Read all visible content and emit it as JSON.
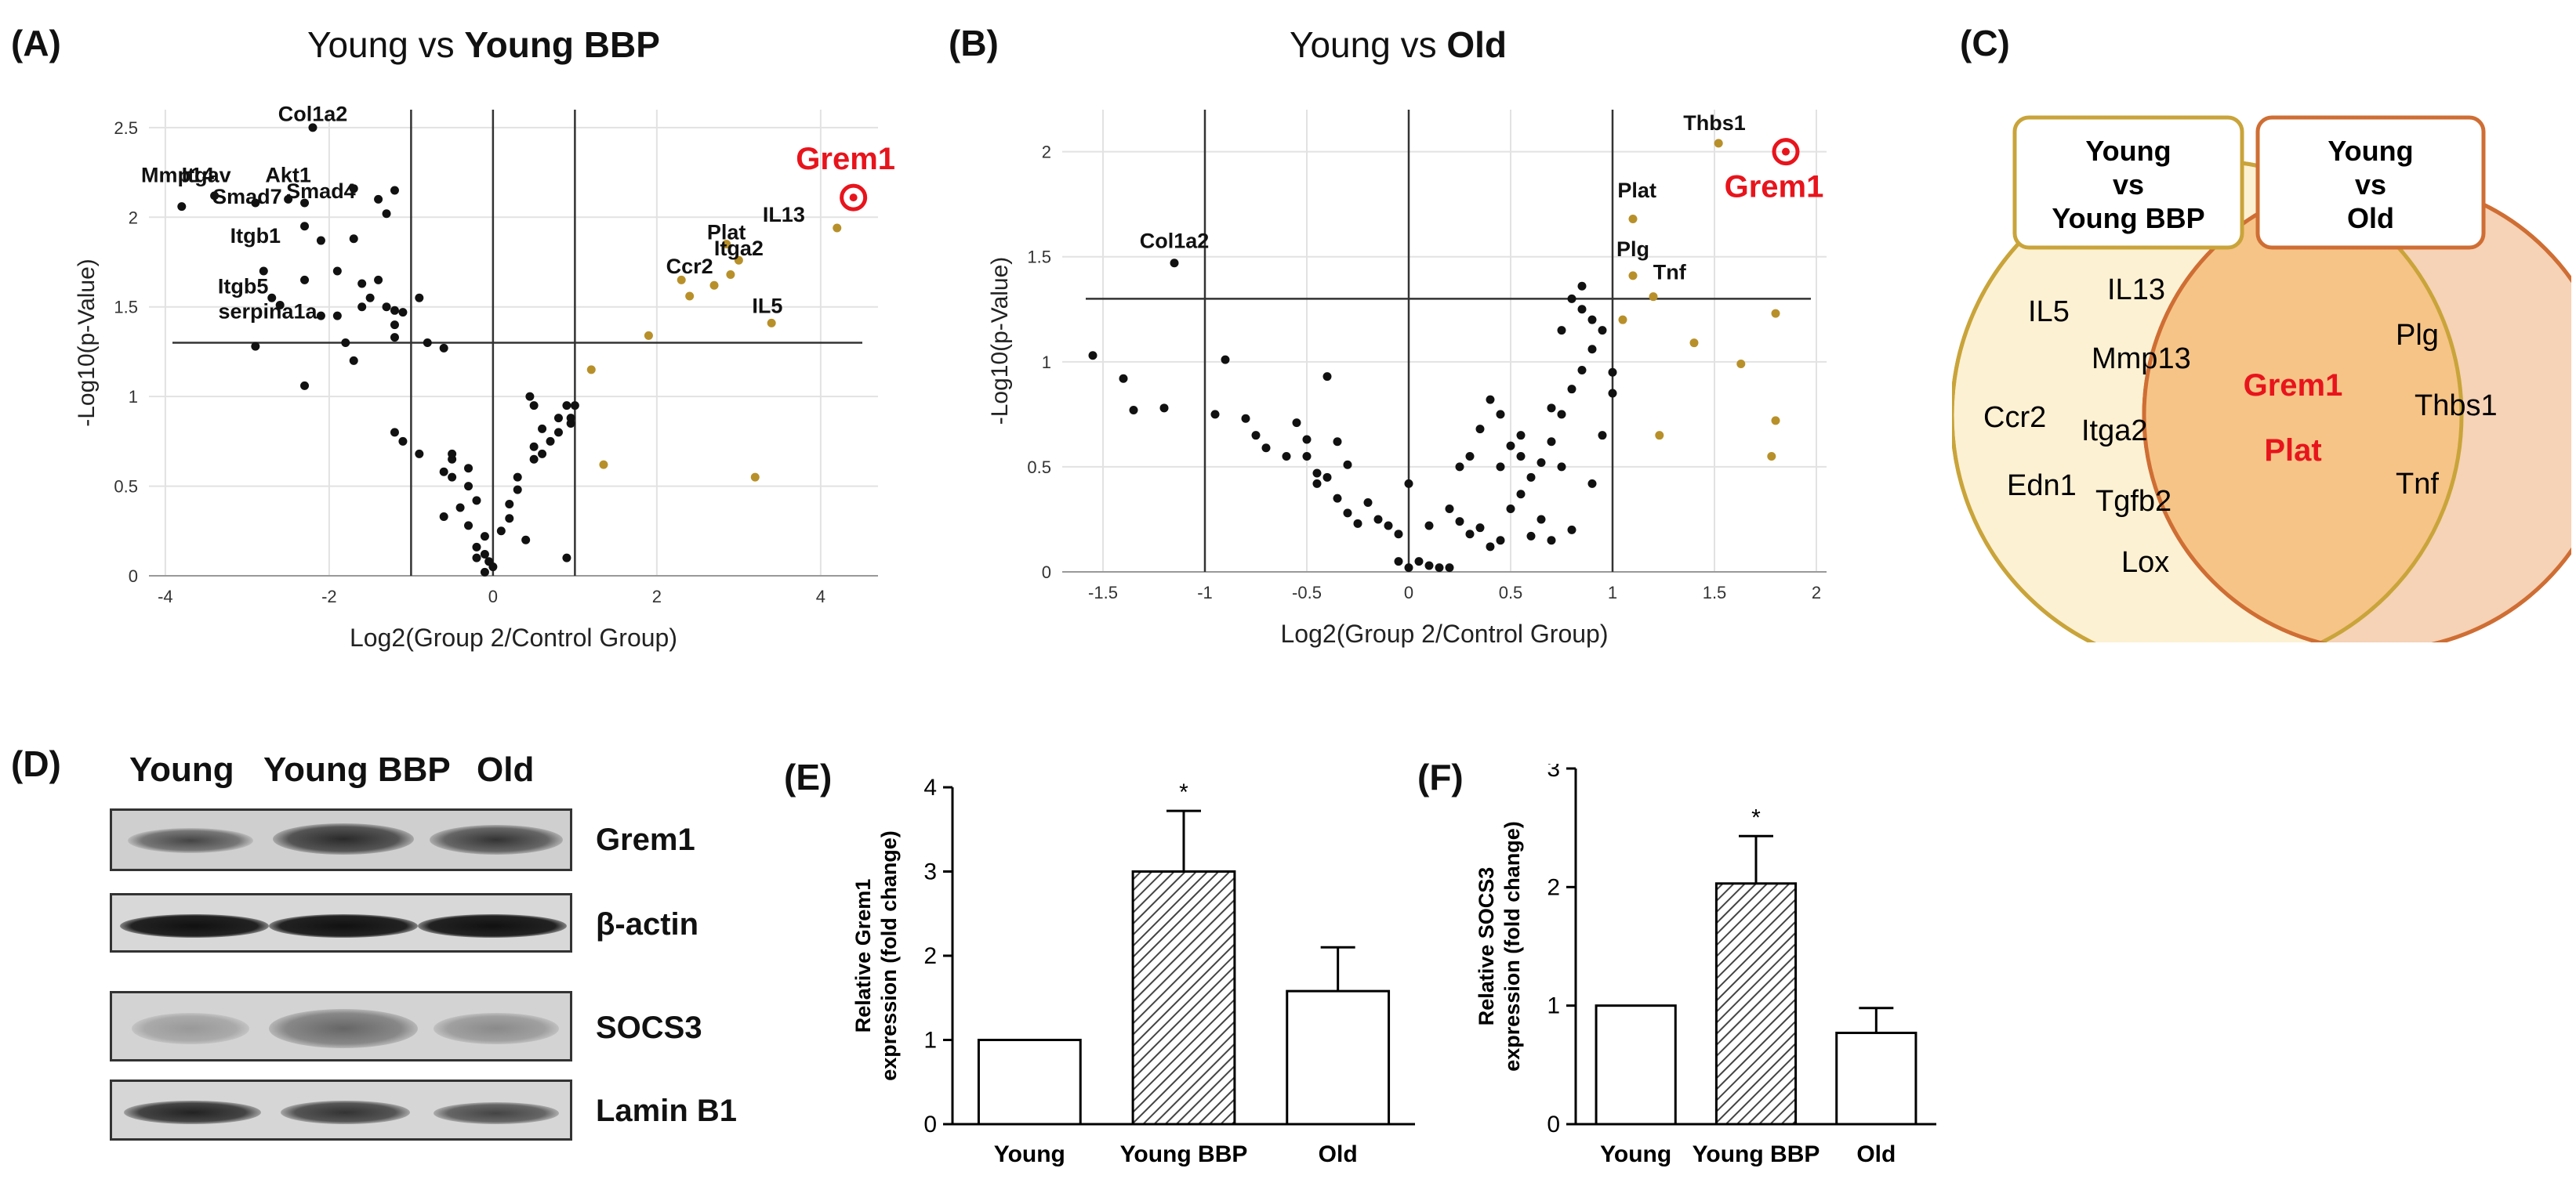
{
  "panels": {
    "A": {
      "label": "(A)",
      "title_prefix": "Young vs ",
      "title_bold": "Young BBP",
      "xlabel": "Log2(Group 2/Control Group)",
      "ylabel": "-Log10(p-Value)",
      "highlight_label": "Grem1"
    },
    "B": {
      "label": "(B)",
      "title_prefix": "Young vs ",
      "title_bold": "Old",
      "xlabel": "Log2(Group 2/Control Group)",
      "ylabel": "-Log10(p-Value)",
      "highlight_label": "Grem1"
    },
    "C": {
      "label": "(C)",
      "box_left_line1": "Young",
      "box_left_line2": "vs",
      "box_left_line3": "Young BBP",
      "box_right_line1": "Young",
      "box_right_line2": "vs",
      "box_right_line3": "Old",
      "left_only": [
        "IL5",
        "IL13",
        "Mmp13",
        "Ccr2",
        "Itga2",
        "Edn1",
        "Tgfb2",
        "Lox"
      ],
      "overlap": [
        "Grem1",
        "Plat"
      ],
      "right_only": [
        "Plg",
        "Thbs1",
        "Tnf"
      ]
    },
    "D": {
      "label": "(D)",
      "columns": [
        "Young",
        "Young BBP",
        "Old"
      ],
      "rows": [
        "Grem1",
        "β-actin",
        "SOCS3",
        "Lamin B1"
      ]
    },
    "E": {
      "label": "(E)"
    },
    "F": {
      "label": "(F)"
    }
  },
  "colors": {
    "black_point": "#111111",
    "gold_point": "#b8902a",
    "highlight": "#e8141c",
    "venn_left_fill": "#fdf1d3",
    "venn_left_stroke": "#c9a43a",
    "venn_right_fill": "#f6d2b6",
    "venn_right_stroke": "#cf6e34",
    "venn_overlap_fill": "#f6c487"
  },
  "chart_data": [
    {
      "id": "A",
      "type": "scatter",
      "title": "Young vs Young BBP",
      "xlabel": "Log2(Group 2/Control Group)",
      "ylabel": "-Log10(p-Value)",
      "xlim": [
        -4.2,
        4.7
      ],
      "ylim": [
        0,
        2.6
      ],
      "xticks": [
        -4,
        -2,
        0,
        2,
        4
      ],
      "yticks": [
        0,
        0.5,
        1,
        1.5,
        2,
        2.5
      ],
      "vlines": [
        -1,
        0,
        1
      ],
      "hline": 1.3,
      "labels": [
        {
          "text": "Col1a2",
          "x": -2.2,
          "y": 2.51
        },
        {
          "text": "Mmp14",
          "x": -3.85,
          "y": 2.17
        },
        {
          "text": "Itgav",
          "x": -3.5,
          "y": 2.17
        },
        {
          "text": "Akt1",
          "x": -2.5,
          "y": 2.17
        },
        {
          "text": "Smad7",
          "x": -3.0,
          "y": 2.05
        },
        {
          "text": "Smad4",
          "x": -2.1,
          "y": 2.08
        },
        {
          "text": "Itgb1",
          "x": -2.9,
          "y": 1.83
        },
        {
          "text": "Itgb5",
          "x": -3.05,
          "y": 1.55
        },
        {
          "text": "serpina1a",
          "x": -2.75,
          "y": 1.41
        },
        {
          "text": "Plat",
          "x": 2.85,
          "y": 1.85
        },
        {
          "text": "IL13",
          "x": 3.55,
          "y": 1.95
        },
        {
          "text": "Ccr2",
          "x": 2.4,
          "y": 1.66
        },
        {
          "text": "Itga2",
          "x": 3.0,
          "y": 1.76
        },
        {
          "text": "IL5",
          "x": 3.35,
          "y": 1.44
        }
      ],
      "highlight": {
        "label": "Grem1",
        "x": 4.4,
        "y": 2.11
      },
      "black_points": [
        [
          -3.8,
          2.06
        ],
        [
          -3.4,
          2.12
        ],
        [
          -2.9,
          2.08
        ],
        [
          -2.5,
          2.1
        ],
        [
          -2.3,
          2.08
        ],
        [
          -2.2,
          2.5
        ],
        [
          -1.7,
          2.16
        ],
        [
          -1.4,
          2.1
        ],
        [
          -1.3,
          2.02
        ],
        [
          -1.2,
          2.15
        ],
        [
          -2.3,
          1.95
        ],
        [
          -2.1,
          1.87
        ],
        [
          -1.7,
          1.88
        ],
        [
          -1.9,
          1.7
        ],
        [
          -1.6,
          1.63
        ],
        [
          -2.8,
          1.7
        ],
        [
          -2.3,
          1.65
        ],
        [
          -1.4,
          1.65
        ],
        [
          -1.5,
          1.55
        ],
        [
          -1.3,
          1.5
        ],
        [
          -1.2,
          1.48
        ],
        [
          -1.1,
          1.47
        ],
        [
          -0.9,
          1.55
        ],
        [
          -1.6,
          1.5
        ],
        [
          -1.9,
          1.45
        ],
        [
          -2.7,
          1.55
        ],
        [
          -2.6,
          1.51
        ],
        [
          -2.1,
          1.45
        ],
        [
          -1.2,
          1.4
        ],
        [
          -0.8,
          1.3
        ],
        [
          -0.6,
          1.27
        ],
        [
          -1.8,
          1.3
        ],
        [
          -1.7,
          1.2
        ],
        [
          -1.2,
          1.33
        ],
        [
          -2.9,
          1.28
        ],
        [
          -2.3,
          1.06
        ],
        [
          -1.2,
          0.8
        ],
        [
          -1.1,
          0.75
        ],
        [
          -0.9,
          0.68
        ],
        [
          -0.5,
          0.65
        ],
        [
          -0.6,
          0.58
        ],
        [
          -0.5,
          0.55
        ],
        [
          -0.3,
          0.5
        ],
        [
          -0.2,
          0.42
        ],
        [
          -0.4,
          0.38
        ],
        [
          -0.6,
          0.33
        ],
        [
          -0.3,
          0.28
        ],
        [
          -0.1,
          0.22
        ],
        [
          -0.2,
          0.16
        ],
        [
          -0.1,
          0.12
        ],
        [
          -0.05,
          0.08
        ],
        [
          0,
          0.05
        ],
        [
          -0.1,
          0.02
        ],
        [
          -0.2,
          0.1
        ],
        [
          0.1,
          0.25
        ],
        [
          0.2,
          0.4
        ],
        [
          0.3,
          0.55
        ],
        [
          0.5,
          0.65
        ],
        [
          0.5,
          0.72
        ],
        [
          0.7,
          0.75
        ],
        [
          0.6,
          0.82
        ],
        [
          0.8,
          0.88
        ],
        [
          0.9,
          0.95
        ],
        [
          0.5,
          0.95
        ],
        [
          0.45,
          1.0
        ],
        [
          0.6,
          0.68
        ],
        [
          0.8,
          0.8
        ],
        [
          0.3,
          0.48
        ],
        [
          -0.3,
          0.6
        ],
        [
          -0.5,
          0.68
        ],
        [
          0.2,
          0.32
        ],
        [
          0.4,
          0.2
        ],
        [
          0.9,
          0.1
        ],
        [
          1.0,
          0.95
        ],
        [
          0.95,
          0.85
        ],
        [
          0.95,
          0.88
        ]
      ],
      "gold_points": [
        [
          4.2,
          1.94
        ],
        [
          2.85,
          1.85
        ],
        [
          3.0,
          1.76
        ],
        [
          2.9,
          1.68
        ],
        [
          2.3,
          1.65
        ],
        [
          2.4,
          1.56
        ],
        [
          2.7,
          1.62
        ],
        [
          3.4,
          1.41
        ],
        [
          1.9,
          1.34
        ],
        [
          1.2,
          1.15
        ],
        [
          1.35,
          0.62
        ],
        [
          3.2,
          0.55
        ]
      ]
    },
    {
      "id": "B",
      "type": "scatter",
      "title": "Young vs Old",
      "xlabel": "Log2(Group 2/Control Group)",
      "ylabel": "-Log10(p-Value)",
      "xlim": [
        -1.7,
        2.05
      ],
      "ylim": [
        0,
        2.2
      ],
      "xticks": [
        -1.5,
        -1,
        -0.5,
        0,
        0.5,
        1,
        1.5,
        2
      ],
      "yticks": [
        0,
        0.5,
        1,
        1.5,
        2
      ],
      "vlines": [
        -1,
        0,
        1
      ],
      "hline": 1.3,
      "labels": [
        {
          "text": "Thbs1",
          "x": 1.5,
          "y": 2.08
        },
        {
          "text": "Col1a2",
          "x": -1.15,
          "y": 1.52
        },
        {
          "text": "Plat",
          "x": 1.12,
          "y": 1.76
        },
        {
          "text": "Plg",
          "x": 1.1,
          "y": 1.48
        },
        {
          "text": "Tnf",
          "x": 1.28,
          "y": 1.37
        }
      ],
      "highlight": {
        "label": "Grem1",
        "x": 1.85,
        "y": 2.0
      },
      "black_points": [
        [
          -1.55,
          1.03
        ],
        [
          -1.15,
          1.47
        ],
        [
          -1.4,
          0.92
        ],
        [
          -1.35,
          0.77
        ],
        [
          -1.2,
          0.78
        ],
        [
          -0.9,
          1.01
        ],
        [
          -0.95,
          0.75
        ],
        [
          -0.8,
          0.73
        ],
        [
          -0.75,
          0.65
        ],
        [
          -0.7,
          0.59
        ],
        [
          -0.6,
          0.55
        ],
        [
          -0.55,
          0.71
        ],
        [
          -0.5,
          0.63
        ],
        [
          -0.5,
          0.55
        ],
        [
          -0.45,
          0.47
        ],
        [
          -0.45,
          0.42
        ],
        [
          -0.4,
          0.45
        ],
        [
          -0.35,
          0.62
        ],
        [
          -0.3,
          0.51
        ],
        [
          -0.4,
          0.93
        ],
        [
          -0.35,
          0.35
        ],
        [
          -0.3,
          0.28
        ],
        [
          -0.25,
          0.23
        ],
        [
          -0.2,
          0.33
        ],
        [
          -0.15,
          0.25
        ],
        [
          -0.1,
          0.22
        ],
        [
          -0.05,
          0.18
        ],
        [
          0,
          0.42
        ],
        [
          -0.05,
          0.05
        ],
        [
          0,
          0.02
        ],
        [
          0.05,
          0.05
        ],
        [
          0.1,
          0.03
        ],
        [
          0.15,
          0.02
        ],
        [
          0.2,
          0.02
        ],
        [
          0.1,
          0.22
        ],
        [
          0.2,
          0.3
        ],
        [
          0.25,
          0.24
        ],
        [
          0.3,
          0.18
        ],
        [
          0.35,
          0.21
        ],
        [
          0.4,
          0.12
        ],
        [
          0.45,
          0.15
        ],
        [
          0.5,
          0.3
        ],
        [
          0.55,
          0.37
        ],
        [
          0.6,
          0.45
        ],
        [
          0.65,
          0.52
        ],
        [
          0.7,
          0.62
        ],
        [
          0.75,
          0.75
        ],
        [
          0.8,
          0.87
        ],
        [
          0.85,
          0.96
        ],
        [
          0.9,
          1.06
        ],
        [
          0.95,
          1.15
        ],
        [
          0.85,
          1.25
        ],
        [
          0.9,
          1.2
        ],
        [
          0.8,
          1.3
        ],
        [
          0.85,
          1.36
        ],
        [
          0.75,
          1.15
        ],
        [
          0.7,
          0.78
        ],
        [
          0.65,
          0.25
        ],
        [
          0.6,
          0.17
        ],
        [
          0.55,
          0.55
        ],
        [
          0.5,
          0.6
        ],
        [
          0.45,
          0.75
        ],
        [
          0.4,
          0.82
        ],
        [
          0.35,
          0.68
        ],
        [
          0.3,
          0.55
        ],
        [
          0.25,
          0.5
        ],
        [
          0.55,
          0.65
        ],
        [
          0.45,
          0.5
        ],
        [
          0.9,
          0.42
        ],
        [
          0.95,
          0.65
        ],
        [
          1.0,
          0.85
        ],
        [
          0.75,
          0.5
        ],
        [
          0.8,
          0.2
        ],
        [
          0.7,
          0.15
        ],
        [
          1.0,
          0.95
        ]
      ],
      "gold_points": [
        [
          1.52,
          2.04
        ],
        [
          1.1,
          1.68
        ],
        [
          1.1,
          1.41
        ],
        [
          1.2,
          1.31
        ],
        [
          1.05,
          1.2
        ],
        [
          1.8,
          1.23
        ],
        [
          1.4,
          1.09
        ],
        [
          1.63,
          0.99
        ],
        [
          1.23,
          0.65
        ],
        [
          1.8,
          0.72
        ],
        [
          1.78,
          0.55
        ]
      ]
    },
    {
      "id": "E",
      "type": "bar",
      "ylabel": "Relative Grem1 expression (fold change)",
      "categories": [
        "Young",
        "Young BBP",
        "Old"
      ],
      "values": [
        1.0,
        3.0,
        1.58
      ],
      "errors": [
        0,
        0.72,
        0.52
      ],
      "significance": [
        "",
        "*",
        ""
      ],
      "hatched": [
        false,
        true,
        false
      ],
      "ylim": [
        0,
        4
      ],
      "yticks": [
        0,
        1,
        2,
        3,
        4
      ]
    },
    {
      "id": "F",
      "type": "bar",
      "ylabel": "Relative SOCS3 expression (fold change)",
      "categories": [
        "Young",
        "Young BBP",
        "Old"
      ],
      "values": [
        1.0,
        2.03,
        0.77
      ],
      "errors": [
        0,
        0.4,
        0.21
      ],
      "significance": [
        "",
        "*",
        ""
      ],
      "hatched": [
        false,
        true,
        false
      ],
      "ylim": [
        0,
        3
      ],
      "yticks": [
        0,
        1,
        2,
        3
      ]
    }
  ]
}
